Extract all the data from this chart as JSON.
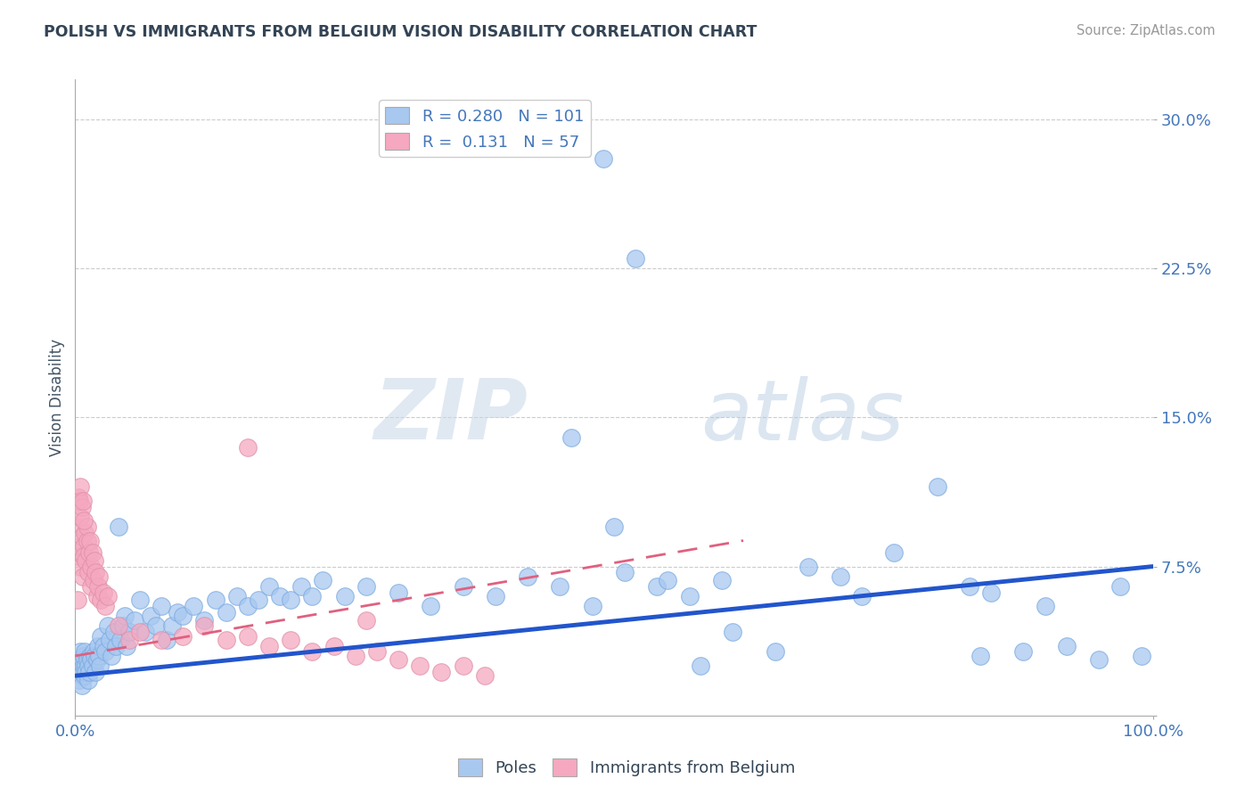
{
  "title": "POLISH VS IMMIGRANTS FROM BELGIUM VISION DISABILITY CORRELATION CHART",
  "source": "Source: ZipAtlas.com",
  "ylabel": "Vision Disability",
  "xlim": [
    0.0,
    1.0
  ],
  "ylim": [
    0.0,
    0.32
  ],
  "yticks": [
    0.0,
    0.075,
    0.15,
    0.225,
    0.3
  ],
  "ytick_labels": [
    "",
    "7.5%",
    "15.0%",
    "22.5%",
    "30.0%"
  ],
  "blue_color": "#a8c8f0",
  "blue_line_color": "#2255cc",
  "pink_color": "#f5a8c0",
  "pink_line_color": "#e06080",
  "r_blue": 0.28,
  "n_blue": 101,
  "r_pink": 0.131,
  "n_pink": 57,
  "tick_color": "#4477bb",
  "blue_scatter": [
    [
      0.002,
      0.028
    ],
    [
      0.003,
      0.022
    ],
    [
      0.004,
      0.018
    ],
    [
      0.005,
      0.025
    ],
    [
      0.005,
      0.032
    ],
    [
      0.006,
      0.02
    ],
    [
      0.006,
      0.015
    ],
    [
      0.007,
      0.028
    ],
    [
      0.007,
      0.022
    ],
    [
      0.008,
      0.025
    ],
    [
      0.008,
      0.03
    ],
    [
      0.009,
      0.02
    ],
    [
      0.009,
      0.032
    ],
    [
      0.01,
      0.025
    ],
    [
      0.01,
      0.022
    ],
    [
      0.011,
      0.028
    ],
    [
      0.012,
      0.018
    ],
    [
      0.012,
      0.025
    ],
    [
      0.013,
      0.022
    ],
    [
      0.014,
      0.03
    ],
    [
      0.015,
      0.028
    ],
    [
      0.016,
      0.025
    ],
    [
      0.017,
      0.032
    ],
    [
      0.018,
      0.03
    ],
    [
      0.019,
      0.022
    ],
    [
      0.02,
      0.028
    ],
    [
      0.021,
      0.035
    ],
    [
      0.022,
      0.03
    ],
    [
      0.023,
      0.025
    ],
    [
      0.024,
      0.04
    ],
    [
      0.026,
      0.035
    ],
    [
      0.028,
      0.032
    ],
    [
      0.03,
      0.045
    ],
    [
      0.032,
      0.038
    ],
    [
      0.034,
      0.03
    ],
    [
      0.036,
      0.042
    ],
    [
      0.038,
      0.035
    ],
    [
      0.04,
      0.095
    ],
    [
      0.042,
      0.038
    ],
    [
      0.044,
      0.045
    ],
    [
      0.046,
      0.05
    ],
    [
      0.048,
      0.035
    ],
    [
      0.05,
      0.042
    ],
    [
      0.055,
      0.048
    ],
    [
      0.06,
      0.058
    ],
    [
      0.065,
      0.042
    ],
    [
      0.07,
      0.05
    ],
    [
      0.075,
      0.045
    ],
    [
      0.08,
      0.055
    ],
    [
      0.085,
      0.038
    ],
    [
      0.09,
      0.045
    ],
    [
      0.095,
      0.052
    ],
    [
      0.1,
      0.05
    ],
    [
      0.11,
      0.055
    ],
    [
      0.12,
      0.048
    ],
    [
      0.13,
      0.058
    ],
    [
      0.14,
      0.052
    ],
    [
      0.15,
      0.06
    ],
    [
      0.16,
      0.055
    ],
    [
      0.17,
      0.058
    ],
    [
      0.18,
      0.065
    ],
    [
      0.19,
      0.06
    ],
    [
      0.2,
      0.058
    ],
    [
      0.21,
      0.065
    ],
    [
      0.22,
      0.06
    ],
    [
      0.23,
      0.068
    ],
    [
      0.25,
      0.06
    ],
    [
      0.27,
      0.065
    ],
    [
      0.3,
      0.062
    ],
    [
      0.33,
      0.055
    ],
    [
      0.36,
      0.065
    ],
    [
      0.39,
      0.06
    ],
    [
      0.42,
      0.07
    ],
    [
      0.45,
      0.065
    ],
    [
      0.48,
      0.055
    ],
    [
      0.51,
      0.072
    ],
    [
      0.5,
      0.095
    ],
    [
      0.54,
      0.065
    ],
    [
      0.57,
      0.06
    ],
    [
      0.6,
      0.068
    ],
    [
      0.46,
      0.14
    ],
    [
      0.68,
      0.075
    ],
    [
      0.71,
      0.07
    ],
    [
      0.73,
      0.06
    ],
    [
      0.76,
      0.082
    ],
    [
      0.8,
      0.115
    ],
    [
      0.83,
      0.065
    ],
    [
      0.85,
      0.062
    ],
    [
      0.88,
      0.032
    ],
    [
      0.9,
      0.055
    ],
    [
      0.84,
      0.03
    ],
    [
      0.92,
      0.035
    ],
    [
      0.95,
      0.028
    ],
    [
      0.49,
      0.28
    ],
    [
      0.52,
      0.23
    ],
    [
      0.55,
      0.068
    ],
    [
      0.58,
      0.025
    ],
    [
      0.61,
      0.042
    ],
    [
      0.65,
      0.032
    ],
    [
      0.97,
      0.065
    ],
    [
      0.99,
      0.03
    ]
  ],
  "pink_scatter": [
    [
      0.002,
      0.095
    ],
    [
      0.003,
      0.08
    ],
    [
      0.004,
      0.085
    ],
    [
      0.005,
      0.1
    ],
    [
      0.005,
      0.075
    ],
    [
      0.006,
      0.09
    ],
    [
      0.007,
      0.07
    ],
    [
      0.008,
      0.085
    ],
    [
      0.008,
      0.08
    ],
    [
      0.009,
      0.092
    ],
    [
      0.01,
      0.078
    ],
    [
      0.011,
      0.088
    ],
    [
      0.011,
      0.095
    ],
    [
      0.012,
      0.072
    ],
    [
      0.013,
      0.082
    ],
    [
      0.014,
      0.088
    ],
    [
      0.015,
      0.065
    ],
    [
      0.015,
      0.075
    ],
    [
      0.016,
      0.082
    ],
    [
      0.017,
      0.068
    ],
    [
      0.018,
      0.078
    ],
    [
      0.019,
      0.072
    ],
    [
      0.02,
      0.06
    ],
    [
      0.021,
      0.065
    ],
    [
      0.022,
      0.07
    ],
    [
      0.024,
      0.058
    ],
    [
      0.026,
      0.062
    ],
    [
      0.028,
      0.055
    ],
    [
      0.03,
      0.06
    ],
    [
      0.003,
      0.11
    ],
    [
      0.004,
      0.108
    ],
    [
      0.005,
      0.115
    ],
    [
      0.006,
      0.105
    ],
    [
      0.007,
      0.108
    ],
    [
      0.008,
      0.098
    ],
    [
      0.16,
      0.135
    ],
    [
      0.002,
      0.058
    ],
    [
      0.04,
      0.045
    ],
    [
      0.05,
      0.038
    ],
    [
      0.27,
      0.048
    ],
    [
      0.06,
      0.042
    ],
    [
      0.08,
      0.038
    ],
    [
      0.1,
      0.04
    ],
    [
      0.12,
      0.045
    ],
    [
      0.14,
      0.038
    ],
    [
      0.16,
      0.04
    ],
    [
      0.18,
      0.035
    ],
    [
      0.2,
      0.038
    ],
    [
      0.22,
      0.032
    ],
    [
      0.24,
      0.035
    ],
    [
      0.26,
      0.03
    ],
    [
      0.28,
      0.032
    ],
    [
      0.3,
      0.028
    ],
    [
      0.32,
      0.025
    ],
    [
      0.34,
      0.022
    ],
    [
      0.36,
      0.025
    ],
    [
      0.38,
      0.02
    ]
  ]
}
